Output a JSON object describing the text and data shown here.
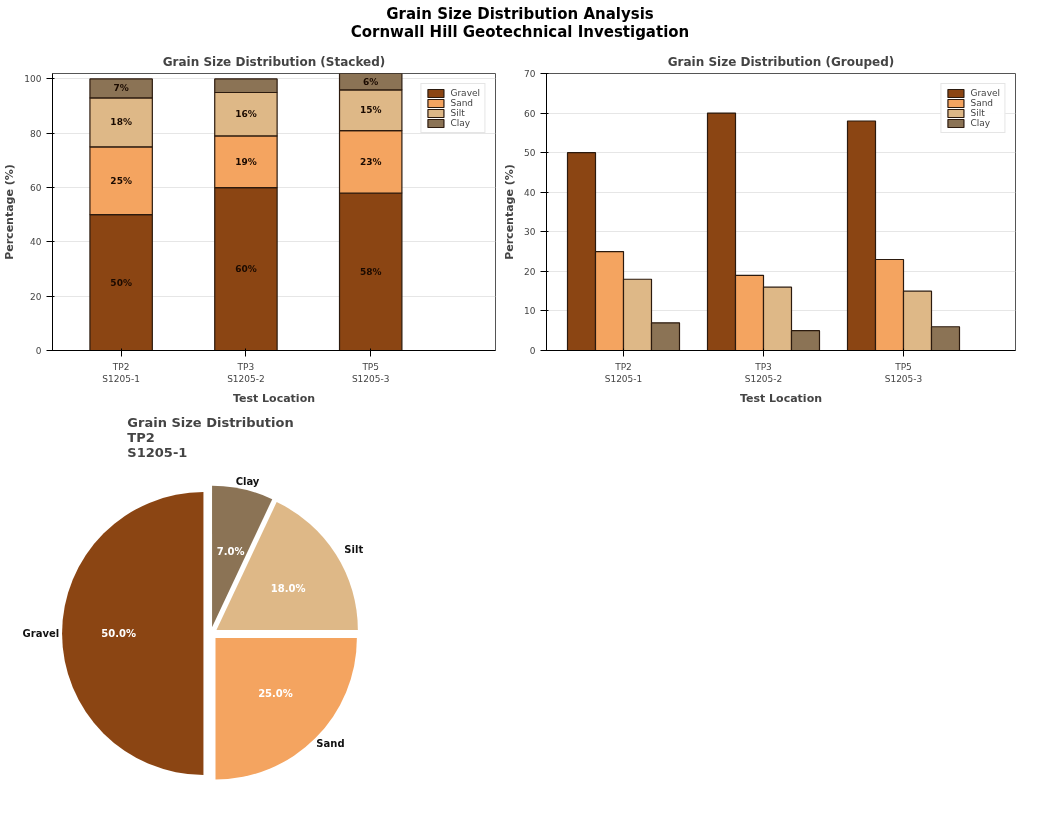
{
  "chart_data": [
    {
      "type": "bar",
      "stacked": true,
      "title": "Grain Size Distribution (Stacked)",
      "annotations": [
        "Grain Size Distribution Analysis",
        "Cornwall Hill Geotechnical Investigation"
      ],
      "xlabel": "Test Location",
      "ylabel": "Percentage (%)",
      "categories": [
        "TP2\nS1205-1",
        "TP3\nS1205-2",
        "TP5\nS1205-3"
      ],
      "ylim": [
        0,
        102
      ],
      "yticks": [
        0,
        20,
        40,
        60,
        80,
        100
      ],
      "grid": "y",
      "legend": "top right",
      "series": [
        {
          "name": "Gravel",
          "color": "#8b4513",
          "values": [
            50,
            60,
            58
          ],
          "value_labels": [
            "50%",
            "60%",
            "58%"
          ]
        },
        {
          "name": "Sand",
          "color": "#f4a460",
          "values": [
            25,
            19,
            23
          ],
          "value_labels": [
            "25%",
            "19%",
            "23%"
          ]
        },
        {
          "name": "Silt",
          "color": "#deb887",
          "values": [
            18,
            16,
            15
          ],
          "value_labels": [
            "18%",
            "16%",
            "15%"
          ]
        },
        {
          "name": "Clay",
          "color": "#8b7355",
          "values": [
            7,
            5,
            6
          ],
          "value_labels": [
            "7%",
            null,
            "6%"
          ]
        }
      ]
    },
    {
      "type": "bar",
      "title": "Grain Size Distribution (Grouped)",
      "xlabel": "Test Location",
      "ylabel": "Percentage (%)",
      "categories": [
        "TP2\nS1205-1",
        "TP3\nS1205-2",
        "TP5\nS1205-3"
      ],
      "ylim": [
        0,
        70
      ],
      "yticks": [
        0,
        10,
        20,
        30,
        40,
        50,
        60,
        70
      ],
      "grid": "y",
      "legend": "top right",
      "series": [
        {
          "name": "Gravel",
          "color": "#8b4513",
          "values": [
            50,
            60,
            58
          ]
        },
        {
          "name": "Sand",
          "color": "#f4a460",
          "values": [
            25,
            19,
            23
          ]
        },
        {
          "name": "Silt",
          "color": "#deb887",
          "values": [
            18,
            16,
            15
          ]
        },
        {
          "name": "Clay",
          "color": "#8b7355",
          "values": [
            7,
            5,
            6
          ]
        }
      ]
    },
    {
      "type": "pie",
      "title": "Grain Size Distribution\nTP2\nS1205-1",
      "categories": [
        "Gravel",
        "Sand",
        "Silt",
        "Clay"
      ],
      "values": [
        50,
        25,
        18,
        7
      ],
      "colors": [
        "#8b4513",
        "#f4a460",
        "#deb887",
        "#8b7355"
      ],
      "value_labels": [
        "50.0%",
        "25.0%",
        "18.0%",
        "7.0%"
      ]
    }
  ]
}
